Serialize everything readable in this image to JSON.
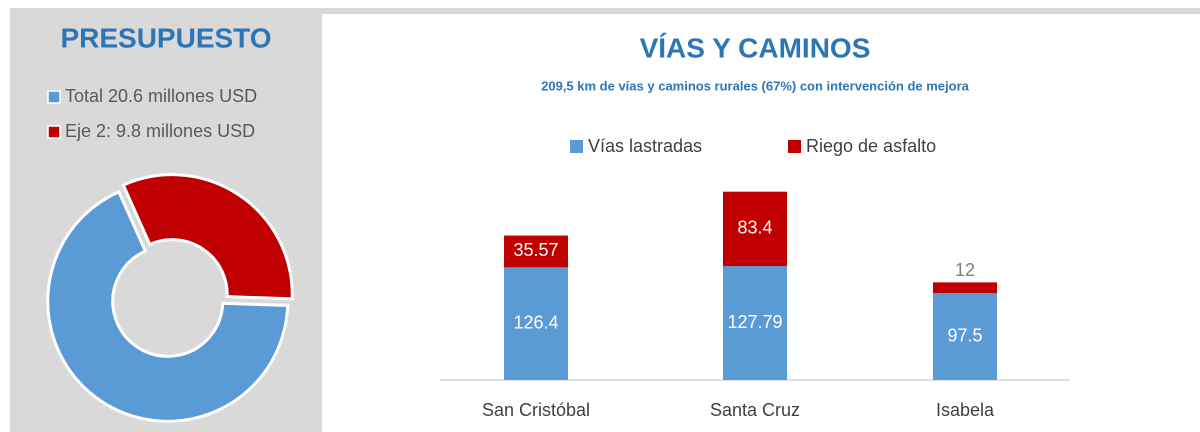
{
  "chart_data": [
    {
      "type": "pie",
      "title": "PRESUPUESTO",
      "labels": [
        "Total 20.6 millones USD",
        "Eje 2: 9.8 millones USD"
      ],
      "values": [
        20.6,
        9.8
      ],
      "colors": [
        "#5b9bd5",
        "#c00000"
      ]
    },
    {
      "type": "bar",
      "title": "VÍAS Y CAMINOS",
      "subtitle": "209,5 km de vías y caminos rurales (67%) con intervención de mejora",
      "categories": [
        "San Cristóbal",
        "Santa Cruz",
        "Isabela"
      ],
      "series": [
        {
          "name": "Vías lastradas",
          "color": "#5b9bd5",
          "values": [
            126.4,
            127.79,
            97.5
          ]
        },
        {
          "name": "Riego de asfalto",
          "color": "#c00000",
          "values": [
            35.57,
            83.4,
            12
          ]
        }
      ],
      "stacked": true,
      "ylim": [
        0,
        240
      ],
      "legend": "top"
    }
  ]
}
